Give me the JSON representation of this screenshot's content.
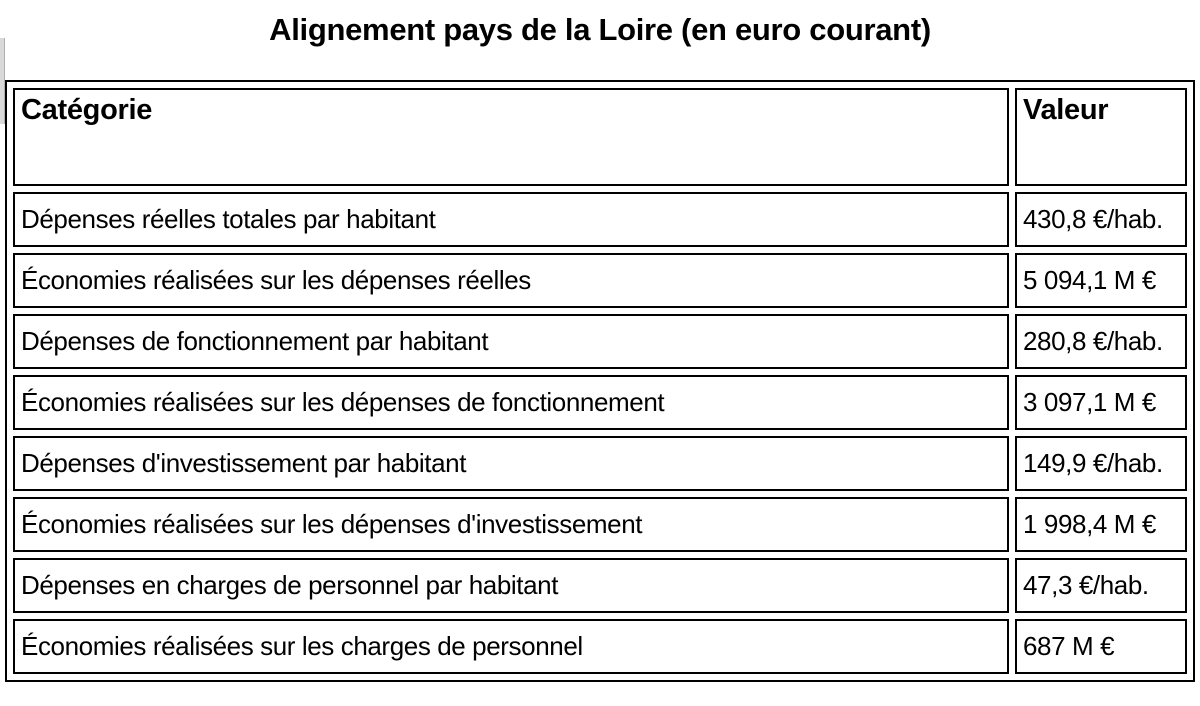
{
  "title": "Alignement pays de la Loire (en euro courant)",
  "table": {
    "headers": [
      "Catégorie",
      "Valeur"
    ],
    "rows": [
      {
        "category": "Dépenses réelles totales par habitant",
        "value": "430,8 €/hab."
      },
      {
        "category": "Économies réalisées sur les dépenses réelles",
        "value": "5 094,1 M €"
      },
      {
        "category": "Dépenses de fonctionnement par habitant",
        "value": "280,8 €/hab."
      },
      {
        "category": "Économies réalisées sur les dépenses de fonctionnement",
        "value": "3 097,1 M €"
      },
      {
        "category": "Dépenses d'investissement par habitant",
        "value": "149,9 €/hab."
      },
      {
        "category": "Économies réalisées sur les dépenses d'investissement",
        "value": "1 998,4 M €"
      },
      {
        "category": "Dépenses en charges de personnel par habitant",
        "value": "47,3 €/hab."
      },
      {
        "category": "Économies réalisées sur les charges de personnel",
        "value": "687 M €"
      }
    ]
  },
  "chart_data": {
    "type": "table",
    "title": "Alignement pays de la Loire (en euro courant)",
    "columns": [
      "Catégorie",
      "Valeur"
    ],
    "categories": [
      "Dépenses réelles totales par habitant",
      "Économies réalisées sur les dépenses réelles",
      "Dépenses de fonctionnement par habitant",
      "Économies réalisées sur les dépenses de fonctionnement",
      "Dépenses d'investissement par habitant",
      "Économies réalisées sur les dépenses d'investissement",
      "Dépenses en charges de personnel par habitant",
      "Économies réalisées sur les charges de personnel"
    ],
    "values": [
      430.8,
      5094.1,
      280.8,
      3097.1,
      149.9,
      1998.4,
      47.3,
      687
    ],
    "units": [
      "€/hab.",
      "M €",
      "€/hab.",
      "M €",
      "€/hab.",
      "M €",
      "€/hab.",
      "M €"
    ]
  },
  "colors": {
    "background": "#ffffff",
    "text": "#000000",
    "border": "#000000",
    "scroll_artifact": "#d9d9d9"
  }
}
